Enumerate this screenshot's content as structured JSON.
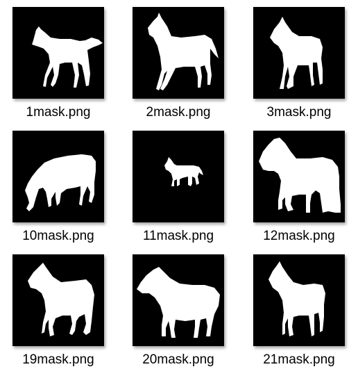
{
  "files": [
    {
      "name": "1mask.png",
      "icon": "horse-silhouette-icon"
    },
    {
      "name": "2mask.png",
      "icon": "horse-silhouette-icon"
    },
    {
      "name": "3mask.png",
      "icon": "horse-silhouette-icon"
    },
    {
      "name": "10mask.png",
      "icon": "horse-silhouette-icon"
    },
    {
      "name": "11mask.png",
      "icon": "horse-silhouette-icon"
    },
    {
      "name": "12mask.png",
      "icon": "horse-silhouette-icon"
    },
    {
      "name": "19mask.png",
      "icon": "horse-silhouette-icon"
    },
    {
      "name": "20mask.png",
      "icon": "horse-silhouette-icon"
    },
    {
      "name": "21mask.png",
      "icon": "horse-silhouette-icon"
    }
  ],
  "colors": {
    "thumbnail_background": "#000000",
    "silhouette": "#ffffff",
    "label_text": "#000000"
  }
}
